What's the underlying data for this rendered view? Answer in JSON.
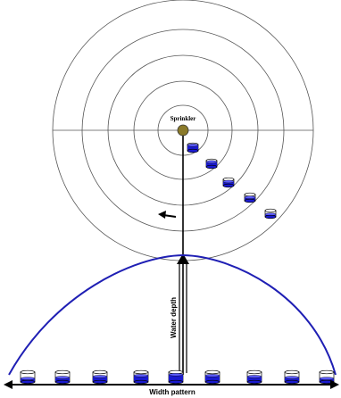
{
  "labels": {
    "sprinkler": "Sprinkler",
    "water_depth": "Water depth",
    "width_pattern": "Width pattern"
  },
  "colors": {
    "curve": "#1f1fb4",
    "water": "#1a1ad0",
    "line": "#000000",
    "circle": "#555555",
    "sprinkler_head": "#8a7a2a"
  },
  "diagram": {
    "rings": 5,
    "cans_on_radius": 5,
    "cans_in_row": 9,
    "can_fill_levels": [
      0.35,
      0.45,
      0.55,
      0.65,
      0.75,
      0.65,
      0.55,
      0.45,
      0.35
    ]
  }
}
